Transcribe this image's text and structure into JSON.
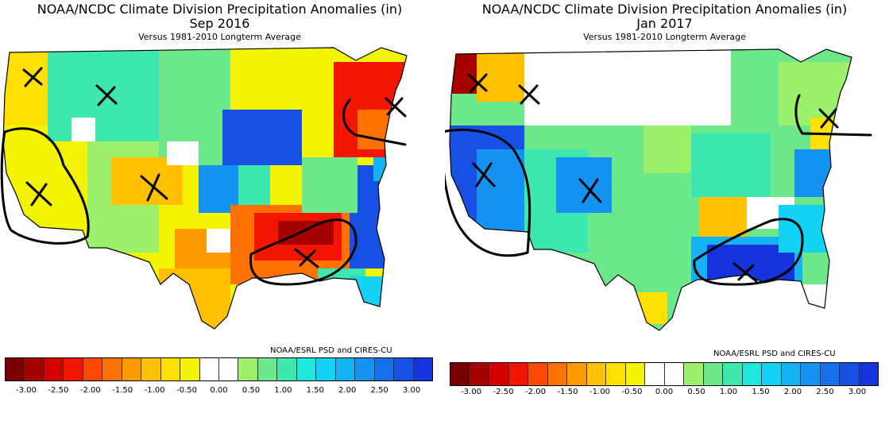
{
  "panels": [
    {
      "title_line1": "NOAA/NCDC Climate Division Precipitation Anomalies (in)",
      "title_line2": "Sep 2016",
      "title_line3": "Versus 1981-2010 Longterm Average",
      "credit": "NOAA/ESRL PSD and CIRES-CU"
    },
    {
      "title_line1": "NOAA/NCDC Climate Division Precipitation Anomalies (in)",
      "title_line2": "Jan 2017",
      "title_line3": "Versus 1981-2010 Longterm Average",
      "credit": "NOAA/ESRL PSD and CIRES-CU"
    }
  ],
  "legend": {
    "tick_labels": [
      "-3.00",
      "-2.50",
      "-2.00",
      "-1.50",
      "-1.00",
      "-0.50",
      "0.00",
      "0.50",
      "1.00",
      "1.50",
      "2.00",
      "2.50",
      "3.00"
    ],
    "colors": [
      "#7a0000",
      "#a80000",
      "#d40000",
      "#f21600",
      "#ff4800",
      "#ff7200",
      "#ff9a00",
      "#ffc000",
      "#ffe000",
      "#f4f400",
      "#ffffff",
      "#ffffff",
      "#9cf06c",
      "#6ce88a",
      "#3ee6b0",
      "#1ee8dc",
      "#14d2f4",
      "#14b4f4",
      "#1692f0",
      "#1670ea",
      "#1650e4",
      "#1634de"
    ]
  },
  "map_colors": {
    "dry_extreme": "#a80000",
    "dry_strong": "#f21600",
    "dry": "#ff7200",
    "dry_mild": "#ffc000",
    "slight_dry": "#f4f400",
    "normal": "#ffffff",
    "slight_wet": "#9cf06c",
    "wet_mild": "#3ee6b0",
    "wet": "#14d2f4",
    "wet_strong": "#1692f0",
    "wet_extreme": "#1634de",
    "annotation": "#000000"
  }
}
